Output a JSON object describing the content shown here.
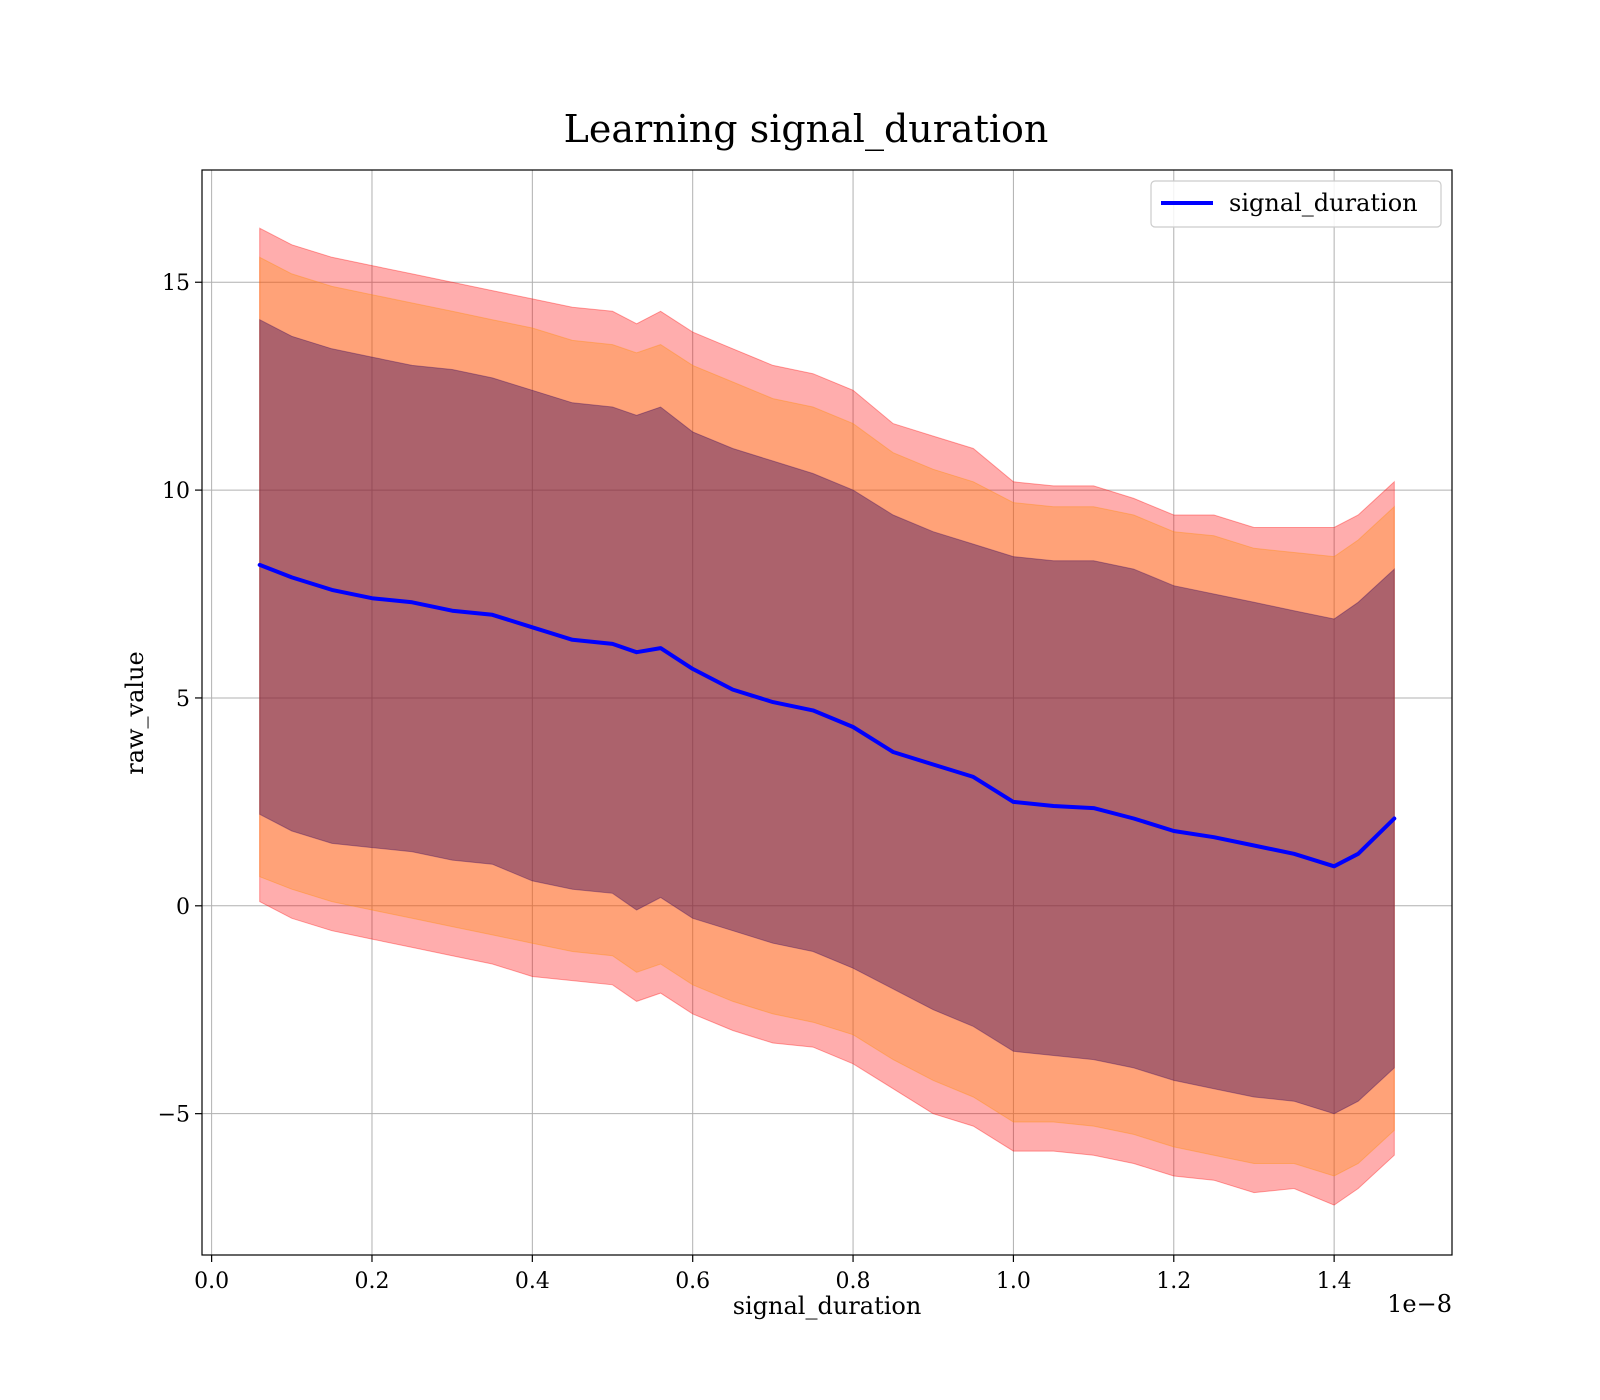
{
  "chart_data": {
    "type": "line",
    "title": "Learning signal_duration",
    "xlabel": "signal_duration",
    "ylabel": "raw_value",
    "x_offset_label": "1e−8",
    "x_scale_exponent": -8,
    "xlim": [
      -0.012,
      1.547
    ],
    "ylim": [
      -8.4,
      17.7
    ],
    "x_ticks": [
      0.0,
      0.2,
      0.4,
      0.6,
      0.8,
      1.0,
      1.2,
      1.4
    ],
    "x_tick_labels": [
      "0.0",
      "0.2",
      "0.4",
      "0.6",
      "0.8",
      "1.0",
      "1.2",
      "1.4"
    ],
    "y_ticks": [
      -5,
      0,
      5,
      10,
      15
    ],
    "y_tick_labels": [
      "−5",
      "0",
      "5",
      "10",
      "15"
    ],
    "grid": true,
    "legend_position": "top-right",
    "x": [
      0.06,
      0.1,
      0.15,
      0.2,
      0.25,
      0.3,
      0.35,
      0.4,
      0.45,
      0.5,
      0.53,
      0.56,
      0.6,
      0.65,
      0.7,
      0.75,
      0.8,
      0.85,
      0.9,
      0.95,
      1.0,
      1.05,
      1.1,
      1.15,
      1.2,
      1.25,
      1.3,
      1.35,
      1.4,
      1.43,
      1.475
    ],
    "series": [
      {
        "name": "signal_duration",
        "color": "#0000ff",
        "values": [
          8.2,
          7.9,
          7.6,
          7.4,
          7.3,
          7.1,
          7.0,
          6.7,
          6.4,
          6.3,
          6.1,
          6.2,
          5.7,
          5.2,
          4.9,
          4.7,
          4.3,
          3.7,
          3.4,
          3.1,
          2.5,
          2.4,
          2.35,
          2.1,
          1.8,
          1.65,
          1.45,
          1.25,
          0.95,
          1.25,
          2.1
        ]
      }
    ],
    "bands": [
      {
        "level": "outer",
        "color": "#ff0000",
        "opacity": 0.32,
        "upper": [
          16.3,
          15.9,
          15.6,
          15.4,
          15.2,
          15.0,
          14.8,
          14.6,
          14.4,
          14.3,
          14.0,
          14.3,
          13.8,
          13.4,
          13.0,
          12.8,
          12.4,
          11.6,
          11.3,
          11.0,
          10.2,
          10.1,
          10.1,
          9.8,
          9.4,
          9.4,
          9.1,
          9.1,
          9.1,
          9.4,
          10.2
        ],
        "lower": [
          0.1,
          -0.3,
          -0.6,
          -0.8,
          -1.0,
          -1.2,
          -1.4,
          -1.7,
          -1.8,
          -1.9,
          -2.3,
          -2.1,
          -2.6,
          -3.0,
          -3.3,
          -3.4,
          -3.8,
          -4.4,
          -5.0,
          -5.3,
          -5.9,
          -5.9,
          -6.0,
          -6.2,
          -6.5,
          -6.6,
          -6.9,
          -6.8,
          -7.2,
          -6.8,
          -6.0
        ]
      },
      {
        "level": "middle",
        "color": "#ff8c00",
        "opacity": 0.3,
        "upper": [
          15.6,
          15.2,
          14.9,
          14.7,
          14.5,
          14.3,
          14.1,
          13.9,
          13.6,
          13.5,
          13.3,
          13.5,
          13.0,
          12.6,
          12.2,
          12.0,
          11.6,
          10.9,
          10.5,
          10.2,
          9.7,
          9.6,
          9.6,
          9.4,
          9.0,
          8.9,
          8.6,
          8.5,
          8.4,
          8.8,
          9.6
        ],
        "lower": [
          0.7,
          0.4,
          0.1,
          -0.1,
          -0.3,
          -0.5,
          -0.7,
          -0.9,
          -1.1,
          -1.2,
          -1.6,
          -1.4,
          -1.9,
          -2.3,
          -2.6,
          -2.8,
          -3.1,
          -3.7,
          -4.2,
          -4.6,
          -5.2,
          -5.2,
          -5.3,
          -5.5,
          -5.8,
          -6.0,
          -6.2,
          -6.2,
          -6.5,
          -6.2,
          -5.4
        ]
      },
      {
        "level": "inner",
        "color": "#3a0a5c",
        "opacity": 0.42,
        "upper": [
          14.1,
          13.7,
          13.4,
          13.2,
          13.0,
          12.9,
          12.7,
          12.4,
          12.1,
          12.0,
          11.8,
          12.0,
          11.4,
          11.0,
          10.7,
          10.4,
          10.0,
          9.4,
          9.0,
          8.7,
          8.4,
          8.3,
          8.3,
          8.1,
          7.7,
          7.5,
          7.3,
          7.1,
          6.9,
          7.3,
          8.1
        ],
        "lower": [
          2.2,
          1.8,
          1.5,
          1.4,
          1.3,
          1.1,
          1.0,
          0.6,
          0.4,
          0.3,
          -0.1,
          0.2,
          -0.3,
          -0.6,
          -0.9,
          -1.1,
          -1.5,
          -2.0,
          -2.5,
          -2.9,
          -3.5,
          -3.6,
          -3.7,
          -3.9,
          -4.2,
          -4.4,
          -4.6,
          -4.7,
          -5.0,
          -4.7,
          -3.9
        ]
      }
    ]
  }
}
